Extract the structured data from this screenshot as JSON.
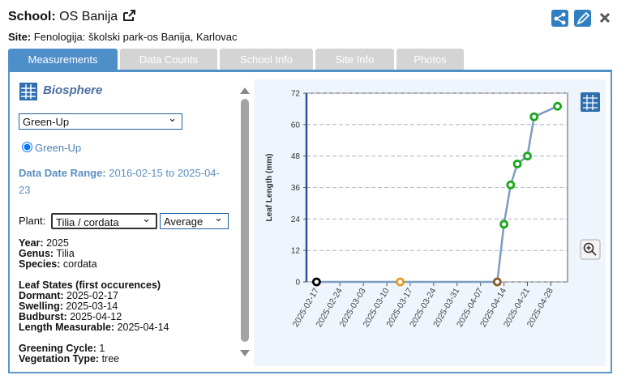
{
  "header": {
    "school_label": "School:",
    "school": "OS Banija",
    "site_label": "Site:",
    "site": "Fenologija: školski park-os Banija, Karlovac"
  },
  "tabs": [
    "Measurements",
    "Data Counts",
    "School Info",
    "Site Info",
    "Photos"
  ],
  "sidebar": {
    "title": "Biosphere",
    "select": "Green-Up",
    "radio": "Green-Up",
    "range_label": "Data Date Range:",
    "range": "2016-02-15 to 2025-04-23",
    "plant_label": "Plant:",
    "plant": "Tilia / cordata",
    "stat": "Average",
    "info": [
      [
        "Year:",
        "2025"
      ],
      [
        "Genus:",
        "Tilia"
      ],
      [
        "Species:",
        "cordata"
      ]
    ],
    "states_title": "Leaf States (first occurences)",
    "states": [
      [
        "Dormant:",
        "2025-02-17"
      ],
      [
        "Swelling:",
        "2025-03-14"
      ],
      [
        "Budburst:",
        "2025-04-12"
      ],
      [
        "Length Measurable:",
        "2025-04-14"
      ]
    ],
    "extra": [
      [
        "Greening Cycle:",
        "1"
      ],
      [
        "Vegetation Type:",
        "tree"
      ]
    ]
  },
  "chart_data": {
    "type": "line",
    "y_label": "Leaf Length (mm)",
    "x": [
      "2025-02-17",
      "2025-03-14",
      "2025-04-12",
      "2025-04-14",
      "2025-04-16",
      "2025-04-18",
      "2025-04-21",
      "2025-04-23",
      "2025-04-30"
    ],
    "series": [
      {
        "color": "#7d9cc0",
        "values": [
          0,
          0,
          0,
          22,
          37,
          45,
          48,
          63,
          67
        ],
        "point_colors": [
          "#000000",
          "#e69a1e",
          "#8b5a1e",
          "#1aa81a",
          "#1aa81a",
          "#1aa81a",
          "#1aa81a",
          "#1aa81a",
          "#1aa81a"
        ]
      }
    ],
    "xlim": [
      "2025-02-14",
      "2025-05-03"
    ],
    "ylim": [
      0,
      72
    ],
    "yticks": [
      0,
      12,
      24,
      36,
      48,
      60,
      72
    ],
    "xticks": [
      "2025-02-17",
      "2025-02-24",
      "2025-03-03",
      "2025-03-10",
      "2025-03-17",
      "2025-03-24",
      "2025-03-31",
      "2025-04-07",
      "2025-04-14",
      "2025-04-21",
      "2025-04-28"
    ],
    "grid": true
  }
}
